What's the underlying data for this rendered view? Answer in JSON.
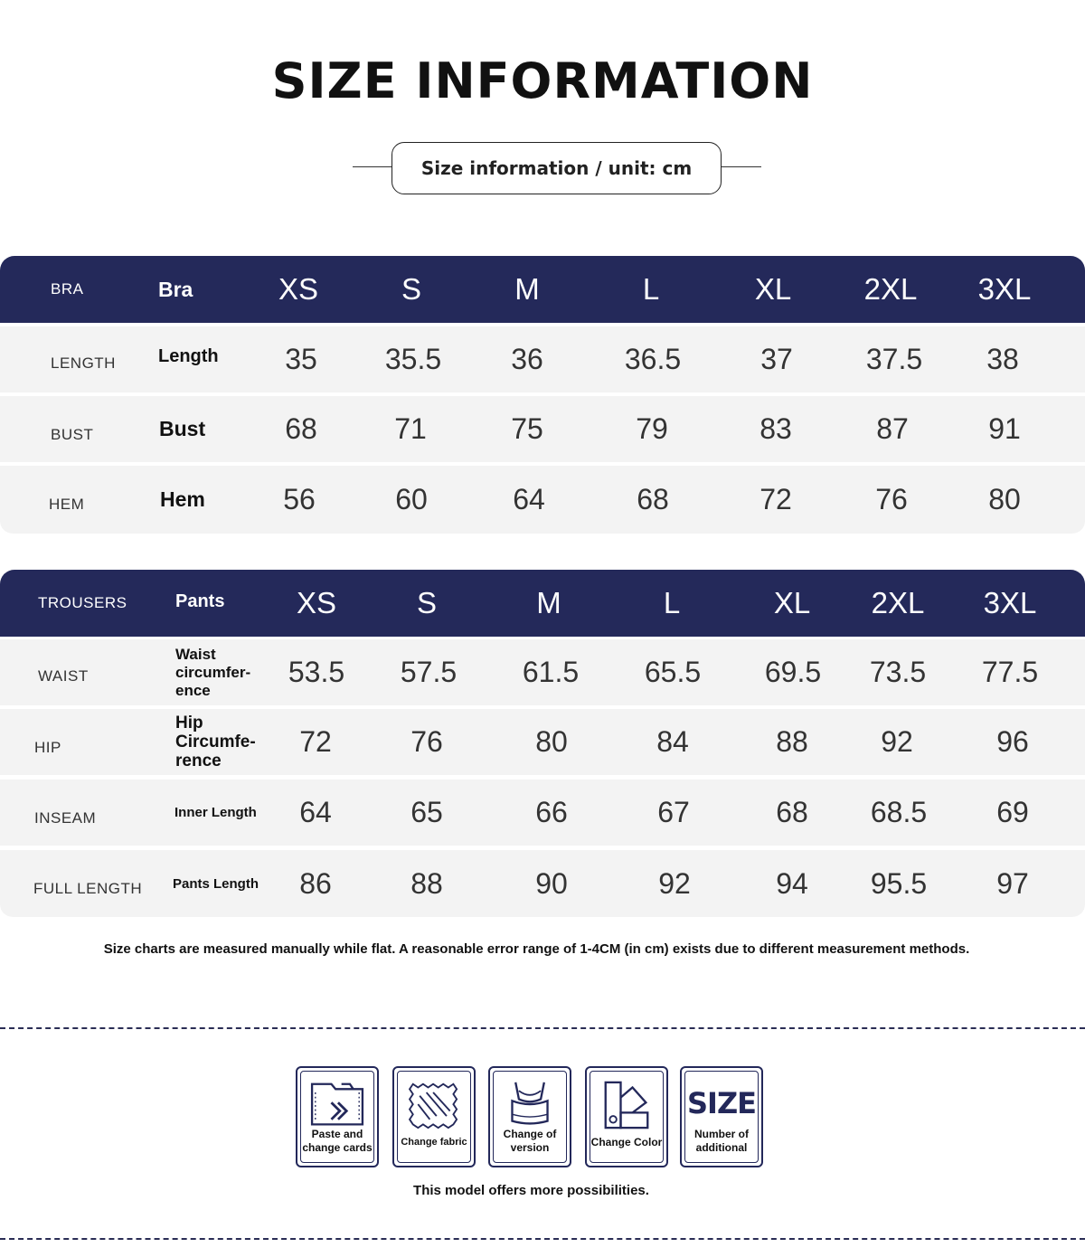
{
  "title": "SIZE INFORMATION",
  "subtitle": "Size information / unit: cm",
  "bra_table": {
    "header": {
      "en": "BRA",
      "name": "Bra",
      "sizes": [
        "XS",
        "S",
        "M",
        "L",
        "XL",
        "2XL",
        "3XL"
      ]
    },
    "rows": [
      {
        "en": "LENGTH",
        "name": "Length",
        "values": [
          "35",
          "35.5",
          "36",
          "36.5",
          "37",
          "37.5",
          "38"
        ]
      },
      {
        "en": "BUST",
        "name": "Bust",
        "values": [
          "68",
          "71",
          "75",
          "79",
          "83",
          "87",
          "91"
        ]
      },
      {
        "en": "HEM",
        "name": "Hem",
        "values": [
          "56",
          "60",
          "64",
          "68",
          "72",
          "76",
          "80"
        ]
      }
    ]
  },
  "pants_table": {
    "header": {
      "en": "TROUSERS",
      "name": "Pants",
      "sizes": [
        "XS",
        "S",
        "M",
        "L",
        "XL",
        "2XL",
        "3XL"
      ]
    },
    "rows": [
      {
        "en": "WAIST",
        "name": "Waist circumfer- ence",
        "values": [
          "53.5",
          "57.5",
          "61.5",
          "65.5",
          "69.5",
          "73.5",
          "77.5"
        ]
      },
      {
        "en": "HIP",
        "name": "Hip Circumfe- rence",
        "values": [
          "72",
          "76",
          "80",
          "84",
          "88",
          "92",
          "96"
        ]
      },
      {
        "en": "INSEAM",
        "name": "Inner Length",
        "values": [
          "64",
          "65",
          "66",
          "67",
          "68",
          "68.5",
          "69"
        ]
      },
      {
        "en": "FULL LENGTH",
        "name": "Pants Length",
        "values": [
          "86",
          "88",
          "90",
          "92",
          "94",
          "95.5",
          "97"
        ]
      }
    ]
  },
  "note": "Size charts are measured manually while flat. A reasonable error range of 1-4CM (in cm) exists due to different measurement methods.",
  "cards": [
    {
      "icon": "folder-arrow-icon",
      "label": "Paste and change cards"
    },
    {
      "icon": "fabric-icon",
      "label": "Change fabric"
    },
    {
      "icon": "bra-icon",
      "label": "Change of version"
    },
    {
      "icon": "color-swatch-icon",
      "label": "Change Color"
    },
    {
      "icon": "size-icon",
      "icon_text": "SIZE",
      "label": "Number of additional"
    }
  ],
  "footer": "This model offers more possibilities.",
  "colors": {
    "navy": "#24295a",
    "row_bg": "#f3f3f3"
  }
}
